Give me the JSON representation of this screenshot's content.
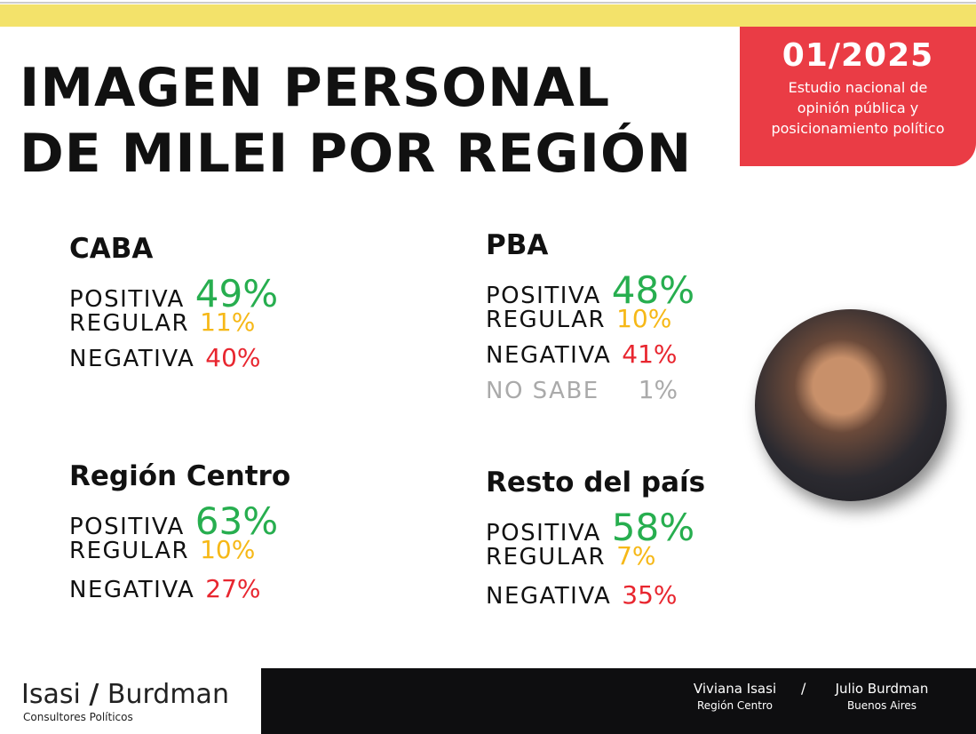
{
  "header": {
    "date": "01/2025",
    "subtitle": [
      "Estudio nacional de",
      "opinión pública y",
      "posicionamiento político"
    ],
    "title_lines": [
      "IMAGEN PERSONAL",
      "DE MILEI POR REGIÓN"
    ]
  },
  "regions": [
    {
      "name": "CABA",
      "rows": [
        {
          "label": "POSITIVA",
          "value": "49%"
        },
        {
          "label": "REGULAR",
          "value": "11%"
        },
        {
          "label": "NEGATIVA",
          "value": "40%"
        }
      ]
    },
    {
      "name": "PBA",
      "rows": [
        {
          "label": "POSITIVA",
          "value": "48%"
        },
        {
          "label": "REGULAR",
          "value": "10%"
        },
        {
          "label": "NEGATIVA",
          "value": "41%"
        },
        {
          "label": "NO SABE",
          "value": "1%"
        }
      ]
    },
    {
      "name": "Región Centro",
      "rows": [
        {
          "label": "POSITIVA",
          "value": "63%"
        },
        {
          "label": "REGULAR",
          "value": "10%"
        },
        {
          "label": "NEGATIVA",
          "value": "27%"
        }
      ]
    },
    {
      "name": "Resto del país",
      "rows": [
        {
          "label": "POSITIVA",
          "value": "58%"
        },
        {
          "label": "REGULAR",
          "value": "7%"
        },
        {
          "label": "NEGATIVA",
          "value": "35%"
        }
      ]
    }
  ],
  "footer": {
    "brand_a": "Isasi",
    "brand_slash": "/",
    "brand_b": "Burdman",
    "brand_sub": "Consultores Políticos",
    "people": [
      {
        "name": "Viviana Isasi",
        "place": "Región Centro"
      },
      {
        "name": "Julio Burdman",
        "place": "Buenos Aires"
      }
    ],
    "separator": "/"
  },
  "colors": {
    "positive": "#27ae4f",
    "regular": "#f6b817",
    "negative": "#e8262f",
    "accent": "#ea3c45",
    "band": "#f3e26a"
  }
}
